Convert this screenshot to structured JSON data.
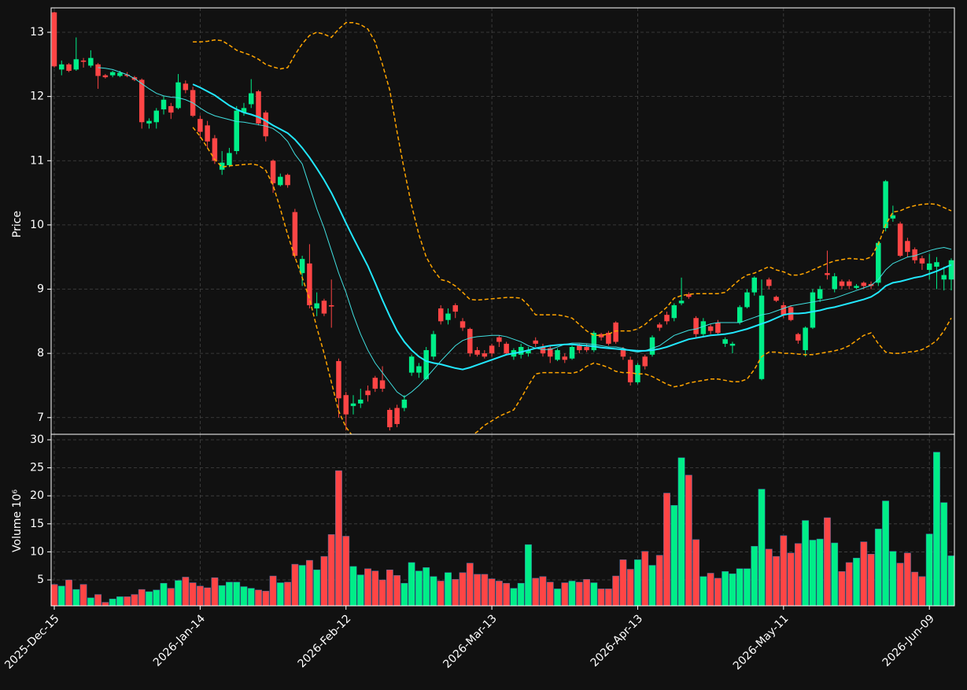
{
  "chart_data": {
    "type": "candlestick",
    "ylabel": "Price",
    "grid": true,
    "up_color": "#00ee88",
    "down_color": "#ff4545",
    "ylim": [
      6.74,
      13.38
    ],
    "yticks": [
      7,
      8,
      9,
      10,
      11,
      12,
      13
    ],
    "categories": [
      "2025-Dec-15",
      null,
      null,
      null,
      null,
      null,
      null,
      null,
      null,
      null,
      null,
      null,
      null,
      null,
      null,
      null,
      null,
      null,
      null,
      null,
      "2026-Jan-14",
      null,
      null,
      null,
      null,
      null,
      null,
      null,
      null,
      null,
      null,
      null,
      null,
      null,
      null,
      null,
      null,
      null,
      null,
      null,
      "2026-Feb-12",
      null,
      null,
      null,
      null,
      null,
      null,
      null,
      null,
      null,
      null,
      null,
      null,
      null,
      null,
      null,
      null,
      null,
      null,
      null,
      "2026-Mar-13",
      null,
      null,
      null,
      null,
      null,
      null,
      null,
      null,
      null,
      null,
      null,
      null,
      null,
      null,
      null,
      null,
      null,
      null,
      null,
      "2026-Apr-13",
      null,
      null,
      null,
      null,
      null,
      null,
      null,
      null,
      null,
      null,
      null,
      null,
      null,
      null,
      null,
      null,
      null,
      null,
      null,
      "2026-May-11",
      null,
      null,
      null,
      null,
      null,
      null,
      null,
      null,
      null,
      null,
      null,
      null,
      null,
      null,
      null,
      null,
      null,
      null,
      null,
      "2026-Jun-09",
      null,
      null,
      null
    ],
    "open": [
      13.31,
      12.42,
      12.5,
      12.42,
      12.56,
      12.48,
      12.5,
      12.33,
      12.33,
      12.32,
      12.34,
      12.3,
      12.26,
      11.58,
      11.6,
      11.8,
      11.85,
      11.82,
      12.2,
      12.1,
      11.65,
      11.55,
      11.35,
      10.86,
      10.93,
      11.15,
      11.75,
      11.88,
      12.08,
      11.75,
      11.0,
      10.62,
      10.78,
      10.2,
      9.25,
      9.4,
      8.7,
      8.82,
      8.75,
      7.88,
      7.35,
      7.18,
      7.22,
      7.42,
      7.62,
      7.58,
      7.12,
      7.15,
      7.15,
      7.7,
      7.7,
      7.6,
      7.95,
      8.7,
      8.52,
      8.75,
      8.5,
      8.38,
      8.05,
      8.0,
      8.12,
      8.25,
      8.15,
      7.95,
      7.98,
      8.0,
      8.2,
      8.1,
      8.08,
      7.9,
      7.95,
      7.92,
      8.12,
      8.1,
      8.05,
      8.3,
      8.32,
      8.48,
      8.05,
      7.9,
      7.55,
      7.95,
      7.98,
      8.45,
      8.6,
      8.55,
      8.78,
      8.92,
      8.55,
      8.3,
      8.42,
      8.48,
      8.15,
      8.12,
      8.48,
      8.72,
      8.95,
      7.6,
      9.15,
      8.88,
      8.75,
      8.72,
      8.3,
      8.05,
      8.4,
      8.85,
      9.25,
      9.0,
      9.12,
      9.12,
      9.02,
      9.1,
      9.08,
      9.1,
      9.95,
      10.1,
      10.02,
      9.75,
      9.62,
      9.48,
      9.3,
      9.35,
      9.15,
      9.15
    ],
    "high": [
      13.32,
      12.56,
      12.52,
      12.92,
      12.6,
      12.72,
      12.52,
      12.35,
      12.4,
      12.4,
      12.38,
      12.32,
      12.28,
      11.66,
      11.82,
      12.0,
      11.9,
      12.35,
      12.25,
      12.15,
      11.7,
      11.62,
      11.4,
      11.15,
      11.2,
      11.85,
      11.9,
      12.27,
      12.1,
      11.78,
      11.02,
      10.8,
      10.8,
      10.25,
      9.52,
      9.7,
      8.95,
      8.85,
      9.15,
      7.92,
      7.4,
      7.35,
      7.45,
      7.5,
      7.65,
      7.8,
      7.15,
      7.2,
      7.35,
      7.98,
      7.85,
      8.1,
      8.35,
      8.75,
      8.7,
      8.78,
      8.55,
      8.4,
      8.1,
      8.05,
      8.15,
      8.28,
      8.18,
      8.08,
      8.15,
      8.1,
      8.25,
      8.15,
      8.12,
      8.08,
      8.0,
      8.12,
      8.15,
      8.15,
      8.35,
      8.32,
      8.35,
      8.5,
      8.1,
      7.95,
      7.85,
      7.98,
      8.28,
      8.48,
      8.65,
      8.78,
      9.18,
      8.95,
      8.58,
      8.55,
      8.45,
      8.52,
      8.25,
      8.18,
      8.75,
      9.0,
      9.2,
      9.15,
      9.18,
      8.9,
      8.8,
      8.75,
      8.32,
      8.42,
      9.0,
      9.05,
      9.6,
      9.25,
      9.15,
      9.15,
      9.08,
      9.12,
      9.12,
      9.75,
      10.7,
      10.3,
      10.05,
      9.8,
      9.65,
      9.52,
      9.55,
      9.5,
      9.35,
      9.48
    ],
    "low": [
      12.45,
      12.33,
      12.38,
      12.4,
      12.45,
      12.45,
      12.12,
      12.28,
      12.3,
      12.3,
      12.3,
      12.24,
      11.5,
      11.5,
      11.5,
      11.72,
      11.65,
      11.8,
      12.05,
      11.68,
      11.35,
      11.2,
      10.95,
      10.78,
      10.9,
      11.1,
      11.7,
      11.82,
      11.55,
      11.3,
      10.5,
      10.6,
      10.58,
      9.48,
      9.05,
      8.7,
      8.58,
      8.58,
      8.4,
      7.0,
      6.8,
      7.05,
      7.15,
      7.25,
      7.4,
      7.4,
      6.8,
      6.85,
      7.1,
      7.65,
      7.62,
      7.58,
      7.9,
      8.45,
      8.45,
      8.55,
      8.35,
      7.95,
      7.95,
      7.92,
      7.95,
      8.1,
      7.98,
      7.9,
      7.92,
      7.95,
      8.1,
      7.95,
      7.85,
      7.88,
      7.85,
      7.9,
      8.0,
      8.02,
      8.02,
      8.2,
      8.12,
      8.15,
      7.9,
      7.5,
      7.52,
      7.75,
      7.95,
      8.35,
      8.45,
      8.5,
      8.75,
      8.85,
      8.25,
      8.25,
      8.3,
      8.28,
      8.1,
      8.0,
      8.45,
      8.7,
      8.9,
      7.58,
      9.0,
      8.8,
      8.55,
      8.5,
      8.15,
      7.95,
      8.38,
      8.8,
      9.15,
      8.95,
      9.0,
      9.0,
      9.0,
      9.0,
      9.0,
      9.05,
      9.9,
      10.05,
      9.5,
      9.5,
      9.4,
      9.3,
      9.15,
      9.0,
      8.98,
      8.98
    ],
    "close": [
      12.47,
      12.5,
      12.4,
      12.58,
      12.54,
      12.6,
      12.32,
      12.3,
      12.38,
      12.37,
      12.32,
      12.26,
      11.6,
      11.62,
      11.78,
      11.95,
      11.75,
      12.22,
      12.1,
      11.7,
      11.45,
      11.3,
      11.0,
      10.97,
      11.12,
      11.78,
      11.82,
      12.05,
      11.58,
      11.38,
      10.65,
      10.75,
      10.62,
      9.52,
      9.47,
      8.75,
      8.78,
      8.62,
      8.73,
      7.3,
      7.05,
      7.22,
      7.28,
      7.35,
      7.45,
      7.45,
      6.85,
      6.9,
      7.28,
      7.95,
      7.8,
      8.05,
      8.3,
      8.5,
      8.62,
      8.65,
      8.4,
      8.0,
      7.98,
      7.95,
      8.0,
      8.18,
      8.0,
      8.05,
      8.1,
      8.05,
      8.15,
      8.0,
      7.95,
      8.05,
      7.9,
      8.1,
      8.05,
      8.05,
      8.32,
      8.25,
      8.15,
      8.18,
      7.95,
      7.55,
      7.82,
      7.8,
      8.25,
      8.4,
      8.5,
      8.75,
      8.82,
      8.88,
      8.3,
      8.5,
      8.35,
      8.32,
      8.22,
      8.15,
      8.72,
      8.95,
      9.18,
      8.9,
      9.05,
      8.82,
      8.6,
      8.52,
      8.2,
      8.4,
      8.95,
      9.0,
      9.22,
      9.2,
      9.05,
      9.05,
      9.05,
      9.05,
      9.05,
      9.72,
      10.68,
      10.15,
      9.52,
      9.58,
      9.45,
      9.4,
      9.4,
      9.42,
      9.22,
      9.45
    ],
    "lines": [
      {
        "color": "#40e0e0",
        "width": 1,
        "dashed": false,
        "values": [
          null,
          null,
          null,
          null,
          null,
          null,
          12.45,
          12.44,
          12.42,
          12.38,
          12.34,
          12.28,
          12.2,
          12.12,
          12.05,
          12.01,
          11.99,
          11.98,
          11.95,
          11.9,
          11.82,
          11.75,
          11.7,
          11.67,
          11.64,
          11.61,
          11.6,
          11.58,
          11.56,
          11.54,
          11.5,
          11.42,
          11.3,
          11.1,
          10.95,
          10.6,
          10.25,
          9.95,
          9.6,
          9.25,
          8.95,
          8.6,
          8.3,
          8.05,
          7.85,
          7.7,
          7.55,
          7.4,
          7.32,
          7.4,
          7.5,
          7.62,
          7.75,
          7.88,
          8.0,
          8.12,
          8.2,
          8.24,
          8.26,
          8.27,
          8.28,
          8.28,
          8.26,
          8.22,
          8.18,
          8.12,
          8.08,
          8.06,
          8.06,
          8.1,
          8.14,
          8.16,
          8.16,
          8.15,
          8.14,
          8.12,
          8.1,
          8.1,
          8.08,
          8.04,
          8.02,
          8.04,
          8.08,
          8.12,
          8.2,
          8.28,
          8.32,
          8.36,
          8.38,
          8.42,
          8.46,
          8.48,
          8.48,
          8.48,
          8.48,
          8.52,
          8.56,
          8.6,
          8.62,
          8.66,
          8.7,
          8.74,
          8.76,
          8.78,
          8.8,
          8.82,
          8.84,
          8.86,
          8.9,
          8.94,
          8.98,
          9.02,
          9.06,
          9.15,
          9.3,
          9.4,
          9.45,
          9.5,
          9.52,
          9.56,
          9.6,
          9.63,
          9.65,
          9.62
        ]
      },
      {
        "color": "#22e8ff",
        "width": 2,
        "dashed": false,
        "values": [
          null,
          null,
          null,
          null,
          null,
          null,
          null,
          null,
          null,
          null,
          null,
          null,
          null,
          null,
          null,
          null,
          null,
          null,
          null,
          12.19,
          12.14,
          12.08,
          12.02,
          11.94,
          11.86,
          11.8,
          11.75,
          11.72,
          11.68,
          11.62,
          11.55,
          11.49,
          11.43,
          11.33,
          11.2,
          11.05,
          10.88,
          10.7,
          10.5,
          10.27,
          10.03,
          9.8,
          9.58,
          9.36,
          9.1,
          8.83,
          8.58,
          8.35,
          8.18,
          8.05,
          7.95,
          7.88,
          7.85,
          7.83,
          7.8,
          7.77,
          7.75,
          7.78,
          7.82,
          7.86,
          7.9,
          7.94,
          7.98,
          8.0,
          8.02,
          8.05,
          8.08,
          8.1,
          8.12,
          8.13,
          8.14,
          8.14,
          8.13,
          8.12,
          8.11,
          8.09,
          8.08,
          8.07,
          8.06,
          8.05,
          8.04,
          8.04,
          8.05,
          8.07,
          8.1,
          8.14,
          8.18,
          8.22,
          8.24,
          8.26,
          8.28,
          8.29,
          8.3,
          8.32,
          8.35,
          8.38,
          8.42,
          8.46,
          8.5,
          8.55,
          8.6,
          8.62,
          8.62,
          8.63,
          8.65,
          8.67,
          8.7,
          8.72,
          8.75,
          8.78,
          8.81,
          8.84,
          8.88,
          8.95,
          9.05,
          9.1,
          9.12,
          9.15,
          9.18,
          9.2,
          9.24,
          9.28,
          9.33,
          9.38
        ]
      },
      {
        "color": "#ffa500",
        "width": 1.5,
        "dashed": true,
        "values": [
          null,
          null,
          null,
          null,
          null,
          null,
          null,
          null,
          null,
          null,
          null,
          null,
          null,
          null,
          null,
          null,
          null,
          null,
          null,
          12.85,
          12.85,
          12.86,
          12.88,
          12.87,
          12.8,
          12.72,
          12.68,
          12.64,
          12.58,
          12.5,
          12.46,
          12.43,
          12.45,
          12.65,
          12.82,
          12.95,
          13.0,
          12.97,
          12.92,
          13.05,
          13.15,
          13.15,
          13.12,
          13.05,
          12.85,
          12.5,
          12.1,
          11.45,
          10.85,
          10.3,
          9.85,
          9.5,
          9.3,
          9.15,
          9.12,
          9.05,
          8.95,
          8.84,
          8.83,
          8.84,
          8.85,
          8.86,
          8.87,
          8.87,
          8.86,
          8.75,
          8.6,
          8.6,
          8.6,
          8.6,
          8.58,
          8.55,
          8.45,
          8.35,
          8.28,
          8.28,
          8.3,
          8.35,
          8.35,
          8.35,
          8.38,
          8.45,
          8.55,
          8.62,
          8.72,
          8.86,
          8.9,
          8.92,
          8.93,
          8.93,
          8.93,
          8.93,
          8.95,
          9.05,
          9.15,
          9.22,
          9.25,
          9.3,
          9.35,
          9.3,
          9.27,
          9.22,
          9.22,
          9.25,
          9.3,
          9.35,
          9.4,
          9.44,
          9.46,
          9.48,
          9.47,
          9.46,
          9.5,
          9.7,
          10.0,
          10.2,
          10.22,
          10.27,
          10.3,
          10.32,
          10.33,
          10.32,
          10.27,
          10.22
        ]
      },
      {
        "color": "#ffa500",
        "width": 1.5,
        "dashed": true,
        "values": [
          null,
          null,
          null,
          null,
          null,
          null,
          null,
          null,
          null,
          null,
          null,
          null,
          null,
          null,
          null,
          null,
          null,
          null,
          null,
          11.52,
          11.38,
          11.2,
          11.02,
          10.9,
          10.92,
          10.93,
          10.94,
          10.95,
          10.93,
          10.85,
          10.62,
          10.25,
          9.85,
          9.5,
          9.18,
          8.85,
          8.4,
          8.0,
          7.55,
          7.1,
          6.85,
          6.7,
          null,
          null,
          null,
          null,
          null,
          null,
          null,
          null,
          null,
          null,
          null,
          null,
          null,
          null,
          null,
          6.7,
          6.78,
          6.88,
          6.95,
          7.02,
          7.07,
          7.12,
          7.3,
          7.5,
          7.68,
          7.7,
          7.7,
          7.7,
          7.7,
          7.69,
          7.72,
          7.8,
          7.85,
          7.82,
          7.78,
          7.72,
          7.7,
          7.7,
          7.68,
          7.68,
          7.64,
          7.58,
          7.52,
          7.48,
          7.5,
          7.54,
          7.56,
          7.58,
          7.6,
          7.6,
          7.58,
          7.56,
          7.56,
          7.6,
          7.75,
          7.95,
          8.02,
          8.02,
          8.0,
          8.0,
          7.99,
          7.98,
          7.98,
          8.0,
          8.02,
          8.04,
          8.07,
          8.12,
          8.2,
          8.28,
          8.32,
          8.15,
          8.02,
          8.0,
          8.0,
          8.02,
          8.03,
          8.06,
          8.12,
          8.2,
          8.35,
          8.55
        ]
      }
    ],
    "volume": {
      "ylabel": "Volume  10⁶",
      "ylim": [
        0.37,
        30.98
      ],
      "yticks": [
        5,
        10,
        15,
        20,
        25,
        30
      ],
      "values": [
        4.2,
        3.9,
        5.0,
        3.3,
        4.2,
        1.8,
        2.4,
        1.0,
        1.6,
        2.0,
        2.0,
        2.4,
        3.3,
        2.9,
        3.2,
        4.4,
        3.5,
        4.9,
        5.5,
        4.5,
        3.9,
        3.6,
        5.4,
        4.0,
        4.6,
        4.6,
        3.8,
        3.5,
        3.2,
        3.0,
        5.7,
        4.5,
        4.6,
        7.8,
        7.6,
        8.5,
        6.8,
        9.2,
        13.1,
        24.5,
        12.8,
        7.4,
        5.9,
        7.0,
        6.6,
        5.0,
        6.8,
        5.8,
        4.4,
        8.1,
        6.6,
        7.2,
        5.6,
        4.8,
        6.3,
        5.1,
        6.3,
        8.0,
        6.0,
        6.0,
        5.2,
        4.8,
        4.4,
        3.5,
        4.4,
        11.3,
        5.3,
        5.6,
        4.6,
        3.4,
        4.5,
        4.8,
        4.6,
        5.1,
        4.5,
        3.4,
        3.4,
        5.7,
        8.6,
        6.9,
        8.6,
        10.1,
        7.6,
        9.4,
        20.5,
        18.3,
        26.8,
        23.7,
        12.2,
        5.6,
        6.2,
        5.3,
        6.5,
        6.1,
        7.0,
        7.0,
        11.0,
        21.2,
        10.5,
        9.2,
        12.9,
        9.8,
        11.5,
        15.6,
        12.1,
        12.3,
        16.1,
        11.6,
        6.5,
        8.1,
        8.9,
        11.8,
        9.6,
        14.1,
        19.1,
        10.1,
        8.0,
        9.8,
        6.4,
        5.6,
        13.2,
        27.8,
        18.8,
        9.3
      ]
    }
  }
}
